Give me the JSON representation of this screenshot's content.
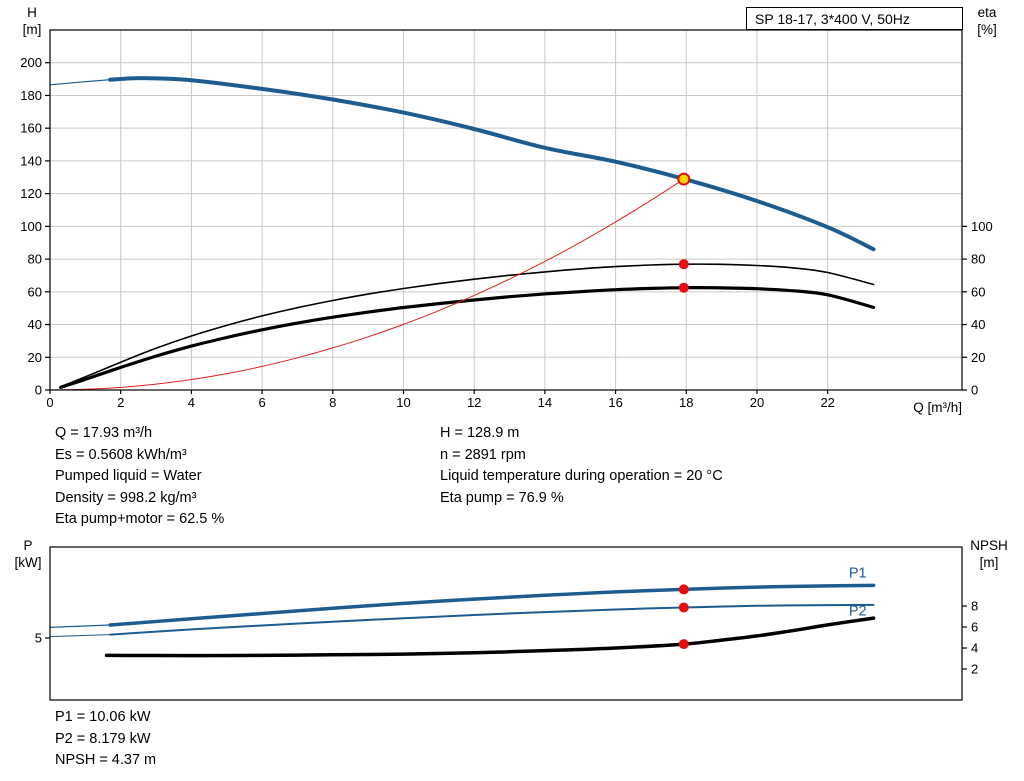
{
  "header": {
    "title": "SP 18-17, 3*400 V, 50Hz"
  },
  "colors": {
    "curve_blue": "#1e5c8f",
    "curve_black": "#000000",
    "curve_red": "#e01f1f",
    "dot_red": "#e60d0d",
    "duty_yellow": "#ffd300",
    "grid": "#c9c9c9"
  },
  "axes_labels": {
    "top_left_1": "H",
    "top_left_2": "[m]",
    "top_right_1": "eta",
    "top_right_2": "[%]",
    "x": "Q [m³/h]",
    "bottom_left_1": "P",
    "bottom_left_2": "[kW]",
    "bottom_right_1": "NPSH",
    "bottom_right_2": "[m]"
  },
  "info_top": {
    "left": [
      "Q = 17.93 m³/h",
      "Es = 0.5608 kWh/m³",
      "Pumped liquid = Water",
      "Density = 998.2 kg/m³",
      "Eta pump+motor = 62.5 %"
    ],
    "right": [
      "H = 128.9 m",
      "n = 2891 rpm",
      "Liquid temperature during operation = 20 °C",
      "Eta pump = 76.9 %"
    ]
  },
  "info_bottom": [
    "P1 = 10.06 kW",
    "P2 = 8.179 kW",
    "NPSH = 4.37 m"
  ],
  "chart_data": [
    {
      "id": "qh",
      "type": "line",
      "title": "SP 18-17, 3*400 V, 50Hz",
      "grid": true,
      "x_axis": {
        "label": "Q [m³/h]",
        "min": 0,
        "max": 25.8,
        "ticks": [
          0,
          2,
          4,
          6,
          8,
          10,
          12,
          14,
          16,
          18,
          20,
          22
        ],
        "show_tick_labels": true
      },
      "y_left": {
        "label": "H [m]",
        "min": 0,
        "max": 220,
        "ticks": [
          0,
          20,
          40,
          60,
          80,
          100,
          120,
          140,
          160,
          180,
          200
        ]
      },
      "y_right": {
        "label": "eta [%]",
        "min": 0,
        "max": 220,
        "ticks": [
          0,
          20,
          40,
          60,
          80,
          100
        ]
      },
      "series": [
        {
          "name": "head-curve-lead",
          "axis": "left",
          "color": "curve_blue",
          "width": 1.2,
          "points": [
            [
              0,
              186.5
            ],
            [
              1,
              188.4
            ],
            [
              1.7,
              189.6
            ]
          ]
        },
        {
          "name": "head-curve",
          "axis": "left",
          "color": "curve_blue",
          "width": 4,
          "points": [
            [
              1.7,
              189.6
            ],
            [
              2.6,
              190.6
            ],
            [
              4,
              189.3
            ],
            [
              6,
              184.0
            ],
            [
              8,
              177.5
            ],
            [
              10,
              169.5
            ],
            [
              12,
              159.5
            ],
            [
              14,
              148.0
            ],
            [
              16,
              139.5
            ],
            [
              18,
              128.6
            ],
            [
              20,
              115.5
            ],
            [
              22,
              99.5
            ],
            [
              23.3,
              86.0
            ]
          ]
        },
        {
          "name": "eta-pump-curve",
          "axis": "right",
          "color": "curve_black",
          "width": 1.6,
          "points": [
            [
              0.3,
              2
            ],
            [
              1,
              8
            ],
            [
              2,
              17
            ],
            [
              3,
              25.5
            ],
            [
              4,
              33
            ],
            [
              5,
              39.5
            ],
            [
              6,
              45.3
            ],
            [
              7,
              50.3
            ],
            [
              8,
              54.7
            ],
            [
              9,
              58.6
            ],
            [
              10,
              62
            ],
            [
              11,
              65
            ],
            [
              12,
              67.7
            ],
            [
              13,
              70.1
            ],
            [
              14,
              72.2
            ],
            [
              15,
              74
            ],
            [
              16,
              75.4
            ],
            [
              17,
              76.4
            ],
            [
              17.93,
              76.9
            ],
            [
              19,
              76.8
            ],
            [
              20,
              76.1
            ],
            [
              21,
              74.7
            ],
            [
              22,
              71.8
            ],
            [
              23.3,
              64.5
            ]
          ]
        },
        {
          "name": "eta-pump-motor-curve",
          "axis": "right",
          "color": "curve_black",
          "width": 3.2,
          "points": [
            [
              0.3,
              1.6
            ],
            [
              1,
              6.5
            ],
            [
              2,
              13.8
            ],
            [
              3,
              20.7
            ],
            [
              4,
              26.8
            ],
            [
              5,
              32.1
            ],
            [
              6,
              36.8
            ],
            [
              7,
              40.9
            ],
            [
              8,
              44.5
            ],
            [
              9,
              47.6
            ],
            [
              10,
              50.4
            ],
            [
              11,
              52.8
            ],
            [
              12,
              55
            ],
            [
              13,
              57
            ],
            [
              14,
              58.7
            ],
            [
              15,
              60.1
            ],
            [
              16,
              61.3
            ],
            [
              17,
              62.1
            ],
            [
              17.93,
              62.5
            ],
            [
              19,
              62.4
            ],
            [
              20,
              61.9
            ],
            [
              21,
              60.7
            ],
            [
              22,
              58.2
            ],
            [
              23.3,
              50.5
            ]
          ]
        },
        {
          "name": "system-curve",
          "axis": "left",
          "color": "curve_red",
          "width": 1,
          "points": [
            [
              0,
              0
            ],
            [
              1,
              0.4
            ],
            [
              2,
              1.6
            ],
            [
              3,
              3.6
            ],
            [
              4,
              6.4
            ],
            [
              5,
              10
            ],
            [
              6,
              14.4
            ],
            [
              7,
              19.7
            ],
            [
              8,
              25.7
            ],
            [
              9,
              32.5
            ],
            [
              10,
              40.1
            ],
            [
              11,
              48.5
            ],
            [
              12,
              57.8
            ],
            [
              13,
              67.8
            ],
            [
              14,
              78.6
            ],
            [
              15,
              90.2
            ],
            [
              16,
              102.7
            ],
            [
              17,
              115.9
            ],
            [
              17.93,
              128.9
            ]
          ]
        }
      ],
      "markers": [
        {
          "name": "eta-pump-dot",
          "x": 17.93,
          "y": 76.9,
          "axis": "right",
          "r": 5,
          "fill": "dot_red"
        },
        {
          "name": "eta-pump-motor-dot",
          "x": 17.93,
          "y": 62.5,
          "axis": "right",
          "r": 5,
          "fill": "dot_red"
        },
        {
          "name": "duty-point",
          "x": 17.93,
          "y": 128.9,
          "axis": "left",
          "r": 5.5,
          "fill": "duty_yellow",
          "stroke": "dot_red",
          "stroke_width": 2
        }
      ],
      "annotations": []
    },
    {
      "id": "power",
      "type": "line",
      "title": "",
      "grid": false,
      "x_axis": {
        "label": "",
        "min": 0,
        "max": 25.8,
        "ticks": [],
        "show_tick_labels": false
      },
      "y_left": {
        "label": "P [kW]",
        "min": -1.46,
        "max": 14.48,
        "ticks": [
          5
        ]
      },
      "y_right": {
        "label": "NPSH [m]",
        "min": -0.95,
        "max": 13.62,
        "ticks": [
          2,
          4,
          6,
          8
        ]
      },
      "series": [
        {
          "name": "p1-curve-lead",
          "axis": "left",
          "color": "curve_blue",
          "width": 1.2,
          "points": [
            [
              0,
              6.1
            ],
            [
              1.7,
              6.35
            ]
          ]
        },
        {
          "name": "p1-curve",
          "axis": "left",
          "color": "curve_blue",
          "width": 3.5,
          "points": [
            [
              1.7,
              6.35
            ],
            [
              4,
              7.0
            ],
            [
              6,
              7.55
            ],
            [
              8,
              8.1
            ],
            [
              10,
              8.6
            ],
            [
              12,
              9.05
            ],
            [
              14,
              9.45
            ],
            [
              16,
              9.8
            ],
            [
              17.93,
              10.06
            ],
            [
              20,
              10.3
            ],
            [
              22,
              10.43
            ],
            [
              23.3,
              10.48
            ]
          ]
        },
        {
          "name": "p2-curve-lead",
          "axis": "left",
          "color": "curve_blue",
          "width": 1,
          "points": [
            [
              0,
              5.15
            ],
            [
              1.7,
              5.35
            ]
          ]
        },
        {
          "name": "p2-curve",
          "axis": "left",
          "color": "curve_blue",
          "width": 2,
          "points": [
            [
              1.7,
              5.35
            ],
            [
              4,
              5.9
            ],
            [
              6,
              6.3
            ],
            [
              8,
              6.7
            ],
            [
              10,
              7.05
            ],
            [
              12,
              7.4
            ],
            [
              14,
              7.7
            ],
            [
              16,
              7.97
            ],
            [
              17.93,
              8.179
            ],
            [
              20,
              8.35
            ],
            [
              22,
              8.43
            ],
            [
              23.3,
              8.45
            ]
          ]
        },
        {
          "name": "npsh-curve",
          "axis": "right",
          "color": "curve_black",
          "width": 3.5,
          "points": [
            [
              1.6,
              3.3
            ],
            [
              4,
              3.28
            ],
            [
              6,
              3.3
            ],
            [
              8,
              3.35
            ],
            [
              10,
              3.42
            ],
            [
              12,
              3.55
            ],
            [
              14,
              3.75
            ],
            [
              16,
              4.0
            ],
            [
              17.93,
              4.37
            ],
            [
              19,
              4.75
            ],
            [
              20,
              5.15
            ],
            [
              21,
              5.65
            ],
            [
              22,
              6.2
            ],
            [
              23.3,
              6.85
            ]
          ]
        }
      ],
      "markers": [
        {
          "name": "p1-duty-dot",
          "x": 17.93,
          "y": 10.06,
          "axis": "left",
          "r": 5,
          "fill": "dot_red"
        },
        {
          "name": "p2-duty-dot",
          "x": 17.93,
          "y": 8.179,
          "axis": "left",
          "r": 5,
          "fill": "dot_red"
        },
        {
          "name": "npsh-duty-dot",
          "x": 17.93,
          "y": 4.37,
          "axis": "right",
          "r": 5,
          "fill": "dot_red"
        }
      ],
      "annotations": [
        {
          "text": "P1",
          "x": 22.6,
          "y": 11.3,
          "axis": "left",
          "color": "curve_blue"
        },
        {
          "text": "P2",
          "x": 22.6,
          "y": 7.35,
          "axis": "left",
          "color": "curve_blue"
        }
      ]
    }
  ]
}
